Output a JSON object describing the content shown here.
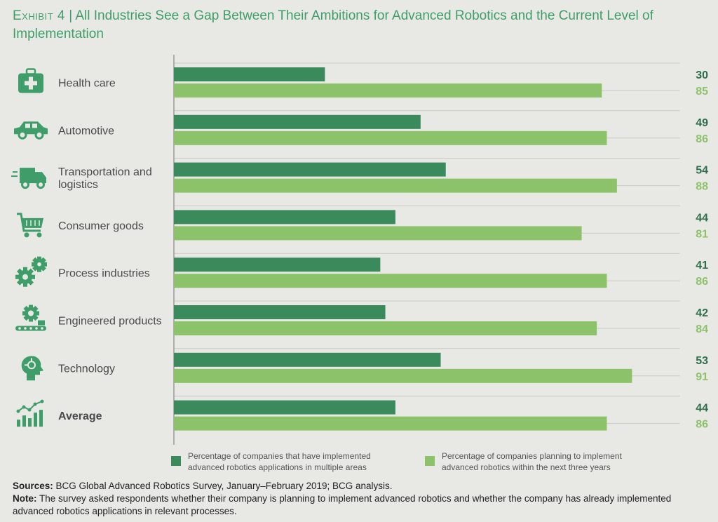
{
  "title": {
    "exhibit": "Exhibit 4",
    "separator": "|",
    "text": "All Industries See a Gap Between Their Ambitions for Advanced Robotics and the Current Level of Implementation"
  },
  "colors": {
    "implemented": "#3a8a5c",
    "planning": "#8cc36a",
    "axis": "#9a9a9a",
    "grid": "#c9cbc5",
    "icon": "#3f9d6a"
  },
  "icons": [
    "medical-kit-icon",
    "car-icon",
    "delivery-truck-icon",
    "shopping-cart-icon",
    "gears-icon",
    "conveyor-gear-icon",
    "circuit-head-icon",
    "bar-chart-icon"
  ],
  "chart_data": {
    "type": "bar",
    "orientation": "horizontal",
    "categories": [
      "Health care",
      "Automotive",
      "Transportation and logistics",
      "Consumer goods",
      "Process industries",
      "Engineered products",
      "Technology",
      "Average"
    ],
    "series": [
      {
        "name": "Percentage of companies that have implemented advanced robotics applications in multiple areas",
        "values": [
          30,
          49,
          54,
          44,
          41,
          42,
          53,
          44
        ]
      },
      {
        "name": "Percentage of companies planning to implement advanced robotics within the next three years",
        "values": [
          85,
          86,
          88,
          81,
          86,
          84,
          91,
          86
        ]
      }
    ],
    "xlim": [
      0,
      100
    ],
    "grid": true,
    "legend": "bottom"
  },
  "legend": {
    "implemented": "Percentage of companies that have implemented advanced robotics applications in multiple areas",
    "planning": "Percentage of companies planning to implement advanced robotics within the next three years"
  },
  "footnotes": {
    "sources_label": "Sources:",
    "sources_text": "BCG Global Advanced Robotics Survey, January–February 2019; BCG analysis.",
    "note_label": "Note:",
    "note_text": "The survey asked respondents whether their company is planning to implement advanced robotics and whether the company has already implemented advanced robotics applications in relevant processes."
  }
}
